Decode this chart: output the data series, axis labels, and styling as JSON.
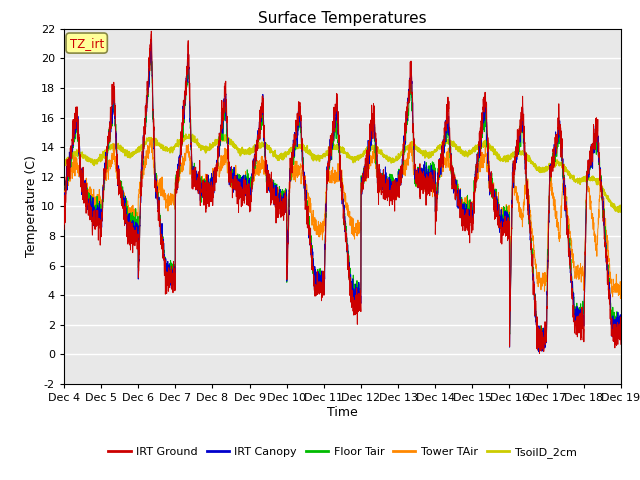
{
  "title": "Surface Temperatures",
  "xlabel": "Time",
  "ylabel": "Temperature (C)",
  "ylim": [
    -2,
    22
  ],
  "yticks": [
    -2,
    0,
    2,
    4,
    6,
    8,
    10,
    12,
    14,
    16,
    18,
    20,
    22
  ],
  "x_tick_labels": [
    "Dec 4",
    "Dec 5",
    "Dec 6",
    "Dec 7",
    "Dec 8",
    "Dec 9",
    "Dec 10",
    "Dec 11",
    "Dec 12",
    "Dec 13",
    "Dec 14",
    "Dec 15",
    "Dec 16",
    "Dec 17",
    "Dec 18",
    "Dec 19"
  ],
  "series_colors": {
    "IRT Ground": "#cc0000",
    "IRT Canopy": "#0000cc",
    "Floor Tair": "#00bb00",
    "Tower TAir": "#ff8800",
    "TsoilD_2cm": "#cccc00"
  },
  "annotation_text": "TZ_irt",
  "annotation_color": "#cc0000",
  "annotation_bg": "#ffff99",
  "background_color": "#e8e8e8",
  "grid_color": "#ffffff",
  "n_points": 3000,
  "days": 15
}
